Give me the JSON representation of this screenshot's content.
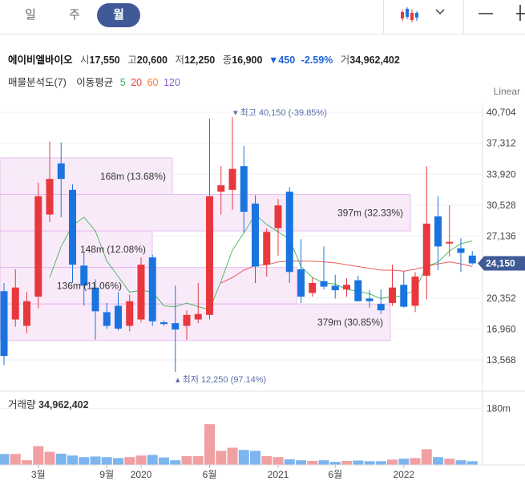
{
  "tabs": [
    {
      "label": "일",
      "active": false
    },
    {
      "label": "주",
      "active": false
    },
    {
      "label": "월",
      "active": true
    }
  ],
  "icons": [
    "candlestick-icon",
    "chevron-down-icon",
    "minus-icon",
    "plus-icon"
  ],
  "stock": {
    "name": "에이비엘바이오",
    "open_label": "시",
    "open": "17,550",
    "high_label": "고",
    "high": "20,600",
    "low_label": "저",
    "low": "12,250",
    "close_label": "종",
    "close": "16,900",
    "change_arrow": "▼",
    "change": "450",
    "change_pct": "-2.59%",
    "volume_label": "거",
    "volume": "34,962,402"
  },
  "indicators": {
    "vp_label": "매물분석도(7)",
    "ma_label": "이동평균",
    "ma": [
      {
        "period": "5",
        "color": "#33b34a"
      },
      {
        "period": "20",
        "color": "#e8413c"
      },
      {
        "period": "60",
        "color": "#f07b2d"
      },
      {
        "period": "120",
        "color": "#8a5cc9"
      }
    ]
  },
  "scale_label": "Linear",
  "volume_panel": {
    "title": "거래량",
    "value": "34,962,402"
  },
  "colors": {
    "up": "#e8383d",
    "down": "#1a74e0",
    "accent": "#3f5a96",
    "vp_fill": "#f9e8fa",
    "vp_stroke": "#e6b8ee"
  },
  "chart_data": {
    "type": "candlestick",
    "y_ticks": [
      40704,
      37312,
      33920,
      30528,
      27136,
      20352,
      16960,
      13568
    ],
    "y_tick_labels": [
      "40,704",
      "37,312",
      "33,920",
      "30,528",
      "27,136",
      "20,352",
      "16,960",
      "13,568"
    ],
    "ylim": [
      11100,
      43000
    ],
    "x_tick_labels": [
      {
        "label": "3월",
        "index": 3
      },
      {
        "label": "9월",
        "index": 9
      },
      {
        "label": "2020",
        "index": 12
      },
      {
        "label": "6월",
        "index": 18
      },
      {
        "label": "2021",
        "index": 24
      },
      {
        "label": "6월",
        "index": 29
      },
      {
        "label": "2022",
        "index": 35
      }
    ],
    "current_price": {
      "label": "24,150",
      "value": 24150
    },
    "max_marker": {
      "label": "최고",
      "value_text": "40,150 (-39.85%)",
      "value": 40150,
      "index": 19
    },
    "min_marker": {
      "label": "최저",
      "value_text": "12,250 (97.14%)",
      "value": 12250,
      "index": 14
    },
    "candles": [
      {
        "o": 21100,
        "h": 22000,
        "l": 13000,
        "c": 14000
      },
      {
        "o": 18000,
        "h": 23500,
        "l": 17200,
        "c": 21500
      },
      {
        "o": 17300,
        "h": 21000,
        "l": 16500,
        "c": 20000
      },
      {
        "o": 20500,
        "h": 33000,
        "l": 19200,
        "c": 31500
      },
      {
        "o": 29500,
        "h": 37500,
        "l": 28700,
        "c": 33400
      },
      {
        "o": 35100,
        "h": 37400,
        "l": 29200,
        "c": 33400
      },
      {
        "o": 32200,
        "h": 32800,
        "l": 22000,
        "c": 24000
      },
      {
        "o": 23900,
        "h": 25300,
        "l": 19500,
        "c": 21700
      },
      {
        "o": 21500,
        "h": 22400,
        "l": 15800,
        "c": 18900
      },
      {
        "o": 18800,
        "h": 19800,
        "l": 17000,
        "c": 17300
      },
      {
        "o": 19500,
        "h": 21000,
        "l": 16800,
        "c": 17000
      },
      {
        "o": 17300,
        "h": 20700,
        "l": 16700,
        "c": 20000
      },
      {
        "o": 18000,
        "h": 24800,
        "l": 17700,
        "c": 24000
      },
      {
        "o": 24800,
        "h": 25100,
        "l": 17300,
        "c": 17800
      },
      {
        "o": 17700,
        "h": 17900,
        "l": 17300,
        "c": 17500
      },
      {
        "o": 17600,
        "h": 21700,
        "l": 12250,
        "c": 16900
      },
      {
        "o": 17300,
        "h": 19000,
        "l": 15800,
        "c": 18500
      },
      {
        "o": 18000,
        "h": 22000,
        "l": 17600,
        "c": 18600
      },
      {
        "o": 18500,
        "h": 40000,
        "l": 18000,
        "c": 31500
      },
      {
        "o": 32000,
        "h": 34800,
        "l": 29500,
        "c": 32700
      },
      {
        "o": 32200,
        "h": 40150,
        "l": 30000,
        "c": 34500
      },
      {
        "o": 34800,
        "h": 37000,
        "l": 27500,
        "c": 29800
      },
      {
        "o": 30700,
        "h": 31600,
        "l": 22000,
        "c": 23800
      },
      {
        "o": 24000,
        "h": 28000,
        "l": 22700,
        "c": 27600
      },
      {
        "o": 28000,
        "h": 31200,
        "l": 25000,
        "c": 30500
      },
      {
        "o": 32000,
        "h": 32500,
        "l": 22000,
        "c": 23200
      },
      {
        "o": 23500,
        "h": 26800,
        "l": 19800,
        "c": 20500
      },
      {
        "o": 20900,
        "h": 22600,
        "l": 20500,
        "c": 22000
      },
      {
        "o": 22200,
        "h": 26000,
        "l": 21300,
        "c": 21600
      },
      {
        "o": 21700,
        "h": 22900,
        "l": 20300,
        "c": 21200
      },
      {
        "o": 21300,
        "h": 22500,
        "l": 20500,
        "c": 21800
      },
      {
        "o": 22300,
        "h": 22800,
        "l": 20000,
        "c": 20000
      },
      {
        "o": 20300,
        "h": 21200,
        "l": 19300,
        "c": 20000
      },
      {
        "o": 19700,
        "h": 21300,
        "l": 18600,
        "c": 19000
      },
      {
        "o": 19800,
        "h": 24000,
        "l": 19500,
        "c": 21500
      },
      {
        "o": 21800,
        "h": 23300,
        "l": 19300,
        "c": 19400
      },
      {
        "o": 19500,
        "h": 23200,
        "l": 18800,
        "c": 22700
      },
      {
        "o": 22800,
        "h": 34800,
        "l": 20200,
        "c": 28500
      },
      {
        "o": 29300,
        "h": 31500,
        "l": 23400,
        "c": 26000
      },
      {
        "o": 26500,
        "h": 30500,
        "l": 24900,
        "c": 26500
      },
      {
        "o": 25800,
        "h": 26900,
        "l": 23200,
        "c": 25300
      },
      {
        "o": 25000,
        "h": 25500,
        "l": 24000,
        "c": 24150
      }
    ],
    "ma5": [
      null,
      null,
      null,
      null,
      22600,
      26000,
      28300,
      29200,
      27700,
      24400,
      22700,
      21000,
      21200,
      21000,
      19500,
      19400,
      19800,
      19400,
      19100,
      22200,
      25600,
      27500,
      29500,
      28400,
      27600,
      26800,
      23800,
      22600,
      22000,
      21900,
      21300,
      21100,
      20800,
      20300,
      20500,
      20600,
      21300,
      23800,
      24300,
      25500,
      26300,
      26600
    ],
    "ma20": [
      null,
      null,
      null,
      null,
      null,
      null,
      null,
      null,
      null,
      null,
      null,
      null,
      null,
      null,
      null,
      null,
      null,
      null,
      null,
      22000,
      22600,
      23400,
      23900,
      24000,
      24300,
      24400,
      24400,
      24400,
      24300,
      24200,
      24000,
      23800,
      23600,
      23400,
      23400,
      23300,
      23500,
      23800,
      24100,
      24300,
      24100,
      23800
    ],
    "volume_ylim": [
      0,
      230
    ],
    "volume_tick": {
      "label": "180m",
      "value": 180
    },
    "volume": [
      35,
      35,
      15,
      60,
      42,
      36,
      30,
      25,
      27,
      25,
      22,
      25,
      30,
      32,
      24,
      15,
      28,
      28,
      130,
      45,
      55,
      48,
      45,
      28,
      25,
      18,
      15,
      13,
      15,
      10,
      13,
      14,
      12,
      12,
      17,
      20,
      22,
      50,
      25,
      20,
      15,
      12
    ],
    "volume_profile": [
      {
        "label": "168m (13.68%)",
        "low": 31700,
        "high": 35700
      },
      {
        "label": "397m (32.33%)",
        "low": 27700,
        "high": 31700
      },
      {
        "label": "148m (12.08%)",
        "low": 23700,
        "high": 27700
      },
      {
        "label": "136m (11.06%)",
        "low": 19700,
        "high": 23700
      },
      {
        "label": "379m (30.85%)",
        "low": 15700,
        "high": 19700
      }
    ]
  }
}
